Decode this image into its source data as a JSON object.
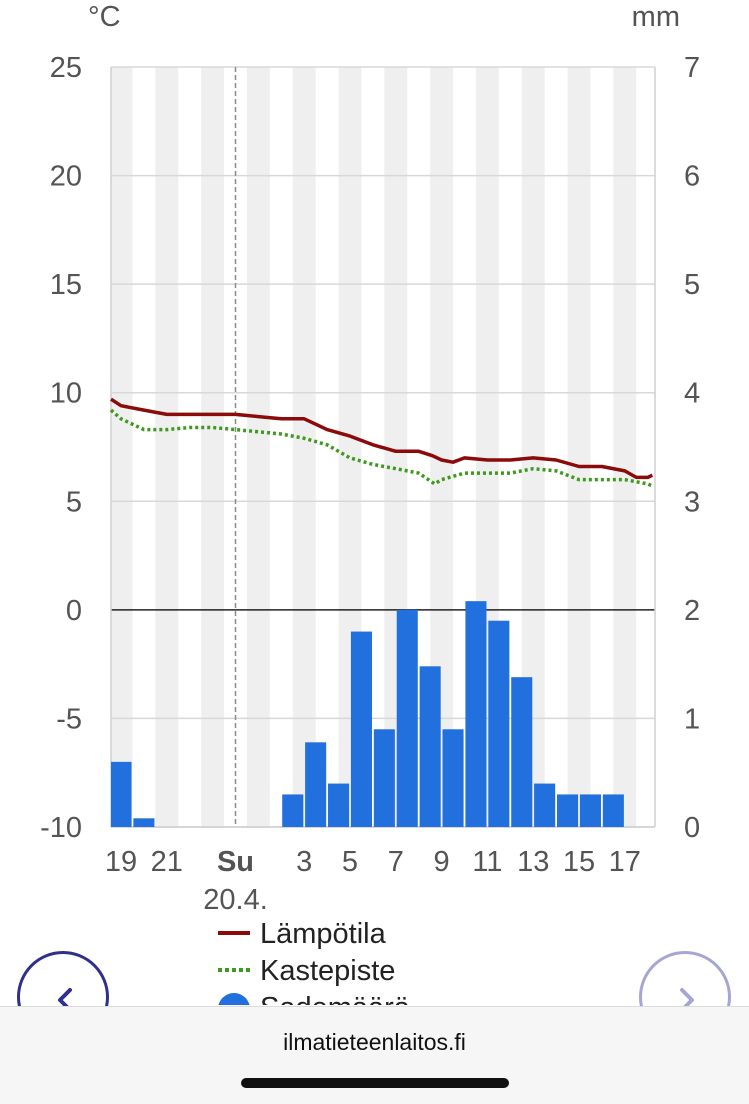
{
  "chart_data": {
    "type": "line+bar",
    "left_unit": "°C",
    "right_unit": "mm",
    "y_left_ticks": [
      "25",
      "20",
      "15",
      "10",
      "5",
      "0",
      "-5",
      "-10"
    ],
    "y_right_ticks": [
      "7",
      "6",
      "5",
      "4",
      "3",
      "2",
      "1",
      "0"
    ],
    "ylim_left": [
      -10,
      25
    ],
    "ylim_right": [
      0,
      7
    ],
    "x_range_hours": [
      18.5,
      42.2
    ],
    "x_ticks": [
      {
        "hour": 19,
        "label": "19",
        "bold": false
      },
      {
        "hour": 21,
        "label": "21",
        "bold": false
      },
      {
        "hour": 24,
        "label": "Su",
        "sublabel": "20.4.",
        "bold": true
      },
      {
        "hour": 27,
        "label": "3",
        "bold": false
      },
      {
        "hour": 29,
        "label": "5",
        "bold": false
      },
      {
        "hour": 31,
        "label": "7",
        "bold": false
      },
      {
        "hour": 33,
        "label": "9",
        "bold": false
      },
      {
        "hour": 35,
        "label": "11",
        "bold": false
      },
      {
        "hour": 37,
        "label": "13",
        "bold": false
      },
      {
        "hour": 39,
        "label": "15",
        "bold": false
      },
      {
        "hour": 41,
        "label": "17",
        "bold": false
      }
    ],
    "day_marker_hour": 24,
    "zero_line": true,
    "series": [
      {
        "name": "Lämpötila",
        "kind": "line",
        "axis": "left",
        "color": "#8b0a0a",
        "style": "solid",
        "x": [
          18.5,
          19,
          20,
          21,
          22,
          23,
          24,
          25,
          26,
          27,
          28,
          29,
          30,
          31,
          32,
          32.6,
          33,
          33.5,
          34,
          35,
          36,
          37,
          38,
          39,
          40,
          41,
          41.5,
          42,
          42.2
        ],
        "y": [
          9.7,
          9.4,
          9.2,
          9.0,
          9.0,
          9.0,
          9.0,
          8.9,
          8.8,
          8.8,
          8.3,
          8.0,
          7.6,
          7.3,
          7.3,
          7.1,
          6.9,
          6.8,
          7.0,
          6.9,
          6.9,
          7.0,
          6.9,
          6.6,
          6.6,
          6.4,
          6.1,
          6.1,
          6.2
        ]
      },
      {
        "name": "Kastepiste",
        "kind": "line",
        "axis": "left",
        "color": "#3e9a1e",
        "style": "dotted",
        "x": [
          18.5,
          19,
          20,
          21,
          22,
          23,
          24,
          25,
          26,
          27,
          28,
          29,
          30,
          31,
          32,
          32.7,
          33,
          34,
          35,
          36,
          37,
          38,
          39,
          40,
          41,
          42,
          42.2
        ],
        "y": [
          9.2,
          8.8,
          8.3,
          8.3,
          8.4,
          8.4,
          8.3,
          8.2,
          8.1,
          7.9,
          7.6,
          7.0,
          6.7,
          6.5,
          6.3,
          5.8,
          6.0,
          6.3,
          6.3,
          6.3,
          6.5,
          6.4,
          6.0,
          6.0,
          6.0,
          5.8,
          5.7
        ]
      },
      {
        "name": "Sademäärä",
        "kind": "bar",
        "axis": "right",
        "color": "#2270dd",
        "x": [
          18.5,
          19,
          20,
          26.5,
          27.5,
          28.5,
          29.5,
          30.5,
          31.5,
          32.5,
          33.5,
          34.5,
          35.5,
          36.5,
          37.5,
          38.5,
          39.5,
          40.5
        ],
        "values": [
          0.3,
          0.6,
          0.08,
          0.3,
          0.78,
          0.4,
          1.8,
          0.9,
          2.0,
          1.48,
          0.9,
          2.08,
          1.9,
          1.38,
          0.4,
          0.3,
          0.3,
          0.3
        ]
      }
    ],
    "legend": {
      "placement": "bottom",
      "items": [
        "Lämpötila",
        "Kastepiste",
        "Sademäärä"
      ]
    },
    "grid": true
  },
  "nav": {
    "prev_icon": "chevron-left-icon",
    "next_icon": "chevron-right-icon"
  },
  "footer": {
    "site": "ilmatieteenlaitos.fi"
  }
}
